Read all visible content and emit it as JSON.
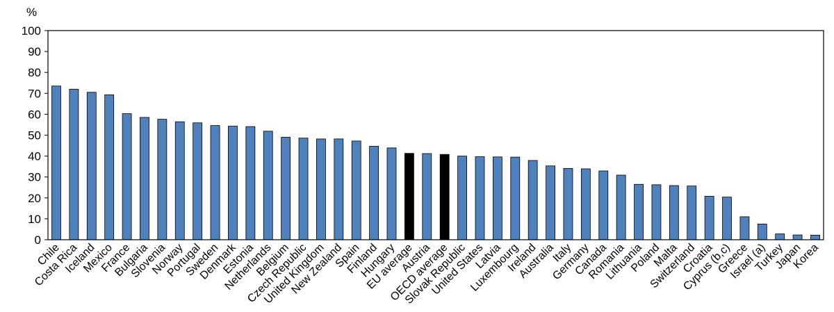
{
  "chart_data": {
    "type": "bar",
    "title": "",
    "xlabel": "",
    "ylabel": "%",
    "ylim": [
      0,
      100
    ],
    "yticks": [
      0,
      10,
      20,
      30,
      40,
      50,
      60,
      70,
      80,
      90,
      100
    ],
    "grid": false,
    "legend": "none",
    "bar_color": "#4f81bd",
    "highlight_color": "#000000",
    "highlight_categories": [
      "EU average",
      "OECD average"
    ],
    "categories": [
      "Chile",
      "Costa Rica",
      "Iceland",
      "Mexico",
      "France",
      "Bulgaria",
      "Slovenia",
      "Norway",
      "Portugal",
      "Sweden",
      "Denmark",
      "Estonia",
      "Netherlands",
      "Belgium",
      "Czech Republic",
      "United Kingdom",
      "New Zealand",
      "Spain",
      "Finland",
      "Hungary",
      "EU average",
      "Austria",
      "OECD average",
      "Slovak Republic",
      "United States",
      "Latvia",
      "Luxembourg",
      "Ireland",
      "Australia",
      "Italy",
      "Germany",
      "Canada",
      "Romania",
      "Lithuania",
      "Poland",
      "Malta",
      "Switzerland",
      "Croatia",
      "Cyprus (b,c)",
      "Greece",
      "Israel (a)",
      "Turkey",
      "Japan",
      "Korea"
    ],
    "values": [
      73.5,
      72,
      70.5,
      69.3,
      60.3,
      58.5,
      57.6,
      56.4,
      55.9,
      54.6,
      54.3,
      54.1,
      51.9,
      49,
      48.6,
      48.2,
      48.2,
      47.2,
      44.7,
      43.9,
      41.3,
      41.2,
      40.8,
      40,
      39.7,
      39.6,
      39.5,
      37.9,
      35.3,
      34.1,
      33.9,
      32.9,
      30.9,
      26.5,
      26.3,
      25.9,
      25.7,
      20.8,
      20.4,
      11,
      7.5,
      2.8,
      2.3,
      2.2
    ]
  }
}
